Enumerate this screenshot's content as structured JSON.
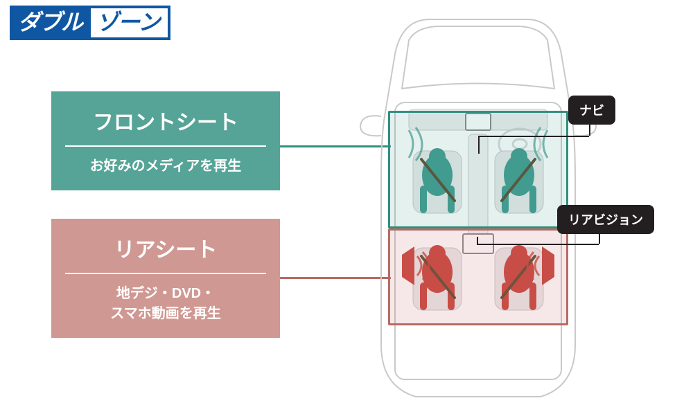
{
  "badge": {
    "left": "ダブル",
    "right": "ゾーン",
    "blue": "#0f57a3"
  },
  "zones": {
    "front": {
      "title": "フロントシート",
      "sub": "お好みのメディアを再生",
      "fill": "#55a497",
      "stroke": "#2f8f7e"
    },
    "rear": {
      "title": "リアシート",
      "sub": "地デジ・DVD・\nスマホ動画を再生",
      "fill": "#d09892",
      "stroke": "#b86a63"
    }
  },
  "callouts": {
    "navi": "ナビ",
    "rearvision": "リアビジョン"
  },
  "car": {
    "outline": "#c9c9c9",
    "seat_fill": "#e9e9e9",
    "person_front": "#3f9b8f",
    "person_rear": "#c7423a",
    "screen_navi": {
      "fill": "#fff",
      "stroke": "#888"
    },
    "screen_rear": {
      "fill": "#fff",
      "stroke": "#888"
    },
    "speaker": "#c7423a",
    "wave": "#3f9b8f"
  }
}
